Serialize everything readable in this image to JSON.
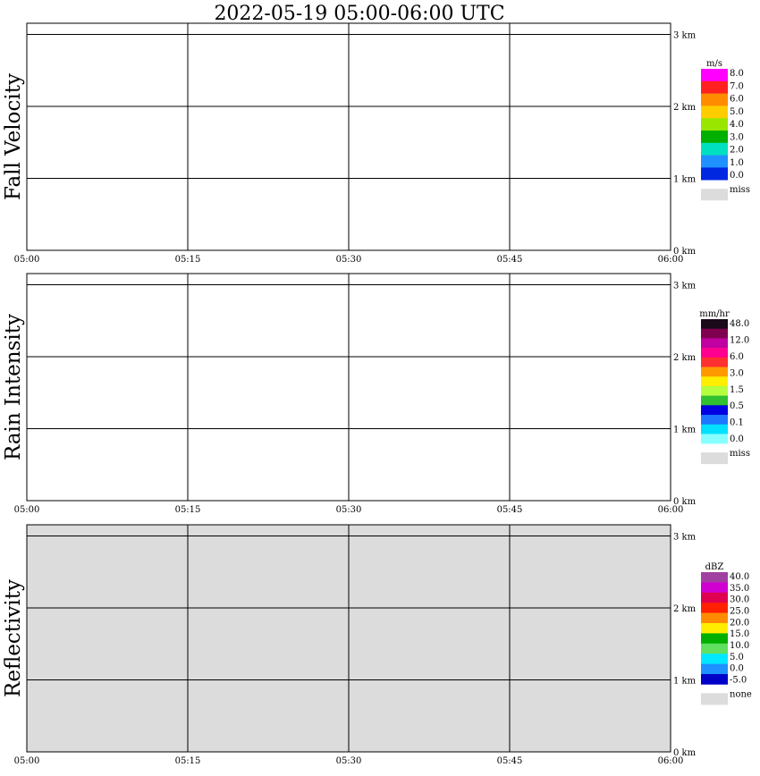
{
  "title": "2022-05-19   05:00-06:00 UTC",
  "chart_data": [
    {
      "type": "heatmap",
      "ylabel": "Fall Velocity",
      "units": "m/s",
      "xticks": [
        "05:00",
        "05:15",
        "05:30",
        "05:45",
        "06:00"
      ],
      "yticks": [
        "0 km",
        "1 km",
        "2 km",
        "3 km"
      ],
      "legend": {
        "labels": [
          "8.0",
          "7.0",
          "6.0",
          "5.0",
          "4.0",
          "3.0",
          "2.0",
          "1.0",
          "0.0"
        ],
        "colors": [
          "#ff00ff",
          "#ff2020",
          "#ff8c00",
          "#ffcc00",
          "#99e600",
          "#00b000",
          "#00e0c0",
          "#1e90ff",
          "#0028e0"
        ],
        "miss_label": "miss",
        "miss_color": "#dcdcdc"
      },
      "background": "#ffffff"
    },
    {
      "type": "heatmap",
      "ylabel": "Rain Intensity",
      "units": "mm/hr",
      "xticks": [
        "05:00",
        "05:15",
        "05:30",
        "05:45",
        "06:00"
      ],
      "yticks": [
        "0 km",
        "1 km",
        "2 km",
        "3 km"
      ],
      "legend": {
        "labels": [
          "48.0",
          "12.0",
          "6.0",
          "3.0",
          "1.5",
          "0.5",
          "0.1",
          "0.0"
        ],
        "colors": [
          "#1a0a1a",
          "#800050",
          "#c000a0",
          "#ff0090",
          "#ff3030",
          "#ff9900",
          "#ffee00",
          "#b4ff40",
          "#30c030",
          "#0000e0",
          "#1e78ff",
          "#00e0ff",
          "#88ffff"
        ],
        "miss_label": "miss",
        "miss_color": "#dcdcdc"
      },
      "background": "#ffffff"
    },
    {
      "type": "heatmap",
      "ylabel": "Reflectivity",
      "units": "dBZ",
      "xticks": [
        "05:00",
        "05:15",
        "05:30",
        "05:45",
        "06:00"
      ],
      "yticks": [
        "0 km",
        "1 km",
        "2 km",
        "3 km"
      ],
      "legend": {
        "labels": [
          "40.0",
          "35.0",
          "30.0",
          "25.0",
          "20.0",
          "15.0",
          "10.0",
          "5.0",
          "0.0",
          "-5.0"
        ],
        "colors": [
          "#a040a0",
          "#d000d0",
          "#e00050",
          "#ff2000",
          "#ff8c00",
          "#ffee00",
          "#00b000",
          "#60e060",
          "#00e8ff",
          "#1e90ff",
          "#0000c8"
        ],
        "miss_label": "none",
        "miss_color": "#dcdcdc"
      },
      "background": "#dcdcdc"
    }
  ]
}
